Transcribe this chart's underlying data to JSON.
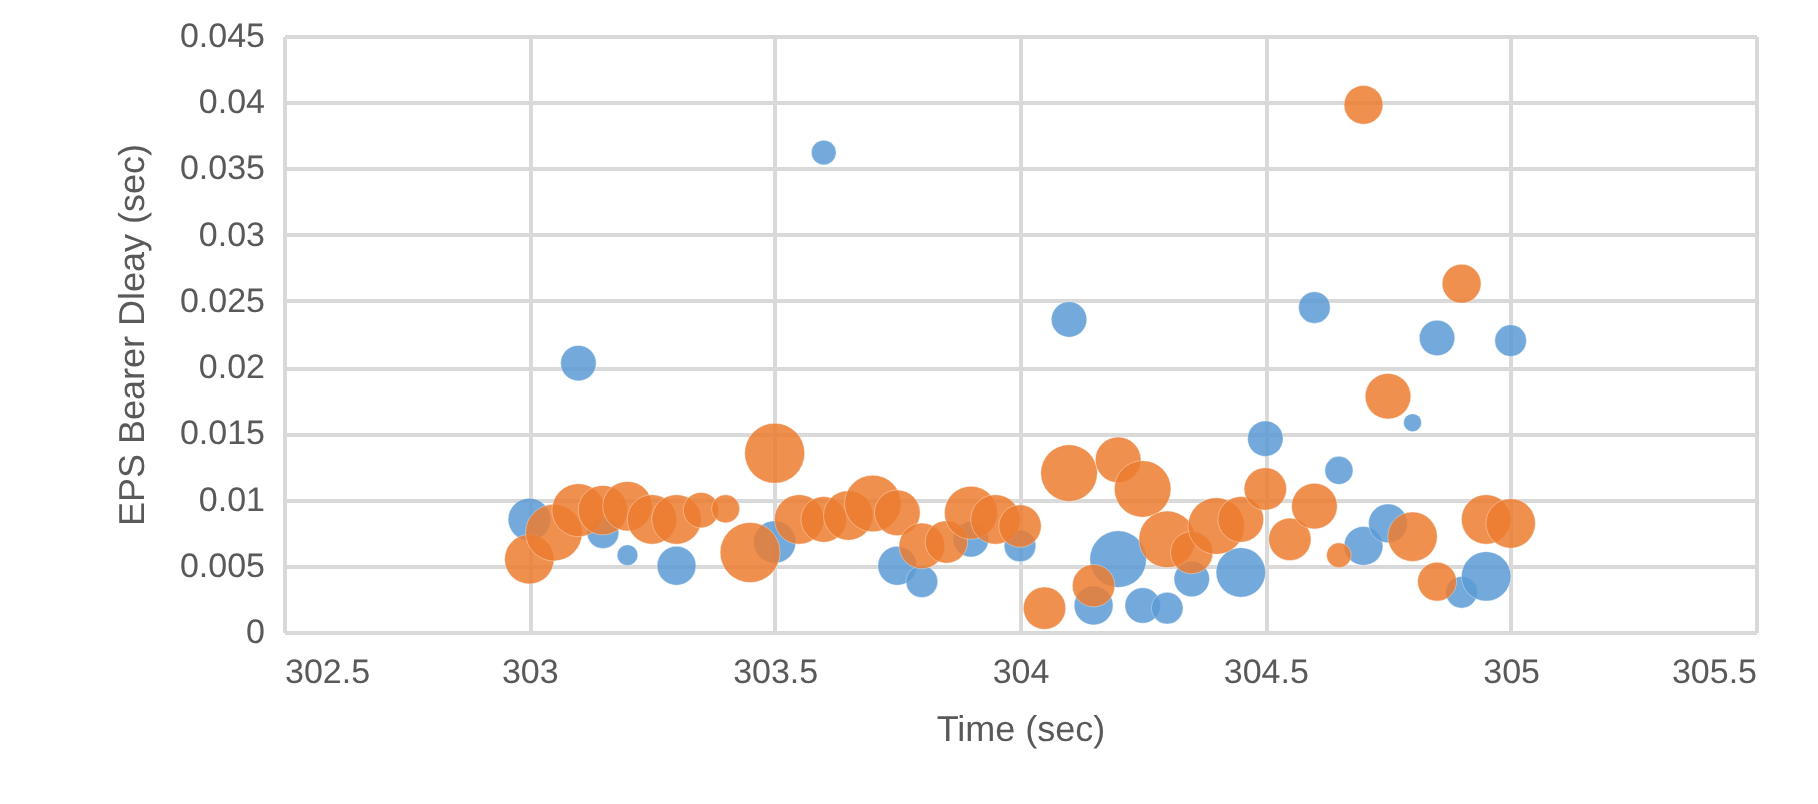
{
  "chart_data": {
    "type": "bubble",
    "xlabel": "Time (sec)",
    "ylabel": "EPS Bearer Dleay (sec)",
    "xlim": [
      302.5,
      305.5
    ],
    "xticks": [
      302.5,
      303,
      303.5,
      304,
      304.5,
      305,
      305.5
    ],
    "ylim": [
      0,
      0.045
    ],
    "yticks": [
      0,
      0.005,
      0.01,
      0.015,
      0.02,
      0.025,
      0.03,
      0.035,
      0.04,
      0.045
    ],
    "grid": true,
    "series": [
      {
        "color": "#5b9bd5",
        "x": [
          303.0,
          303.1,
          303.15,
          303.2,
          303.3,
          303.5,
          303.6,
          303.75,
          303.8,
          303.9,
          304.0,
          304.1,
          304.15,
          304.2,
          304.25,
          304.3,
          304.35,
          304.45,
          304.5,
          304.6,
          304.65,
          304.7,
          304.75,
          304.8,
          304.85,
          304.9,
          304.95,
          305.0
        ],
        "values": [
          0.0085,
          0.0203,
          0.0075,
          0.0058,
          0.005,
          0.0068,
          0.0362,
          0.005,
          0.0038,
          0.007,
          0.0065,
          0.0236,
          0.002,
          0.0055,
          0.002,
          0.0018,
          0.004,
          0.0045,
          0.0146,
          0.0245,
          0.0122,
          0.0065,
          0.0082,
          0.0158,
          0.0222,
          0.003,
          0.0042,
          0.022
        ],
        "sizes": [
          0.5,
          0.35,
          0.28,
          0.12,
          0.42,
          0.5,
          0.17,
          0.42,
          0.28,
          0.35,
          0.28,
          0.35,
          0.42,
          0.89,
          0.35,
          0.28,
          0.35,
          0.68,
          0.35,
          0.28,
          0.22,
          0.42,
          0.42,
          0.09,
          0.35,
          0.28,
          0.68,
          0.28
        ]
      },
      {
        "color": "#ed7d31",
        "x": [
          303.0,
          303.05,
          303.1,
          303.15,
          303.2,
          303.25,
          303.3,
          303.35,
          303.4,
          303.45,
          303.5,
          303.55,
          303.6,
          303.65,
          303.7,
          303.75,
          303.8,
          303.85,
          303.9,
          303.95,
          304.0,
          304.05,
          304.1,
          304.15,
          304.2,
          304.25,
          304.3,
          304.35,
          304.4,
          304.45,
          304.5,
          304.55,
          304.6,
          304.65,
          304.7,
          304.75,
          304.8,
          304.85,
          304.9,
          304.95,
          305.0
        ],
        "values": [
          0.0055,
          0.0075,
          0.0092,
          0.0092,
          0.0095,
          0.0085,
          0.0085,
          0.0092,
          0.0093,
          0.006,
          0.0135,
          0.0085,
          0.0085,
          0.0088,
          0.0097,
          0.009,
          0.0065,
          0.0068,
          0.009,
          0.0085,
          0.008,
          0.0018,
          0.012,
          0.0035,
          0.013,
          0.0108,
          0.007,
          0.006,
          0.008,
          0.0085,
          0.0108,
          0.007,
          0.0095,
          0.0058,
          0.0398,
          0.0178,
          0.0072,
          0.0038,
          0.0263,
          0.0085,
          0.0082
        ],
        "sizes": [
          0.68,
          0.89,
          0.78,
          0.68,
          0.68,
          0.68,
          0.68,
          0.35,
          0.22,
          1,
          1,
          0.68,
          0.58,
          0.68,
          0.89,
          0.58,
          0.58,
          0.5,
          0.78,
          0.68,
          0.5,
          0.5,
          0.89,
          0.5,
          0.58,
          0.89,
          0.89,
          0.5,
          0.89,
          0.58,
          0.5,
          0.5,
          0.58,
          0.17,
          0.42,
          0.58,
          0.68,
          0.42,
          0.42,
          0.68,
          0.68
        ]
      }
    ]
  }
}
